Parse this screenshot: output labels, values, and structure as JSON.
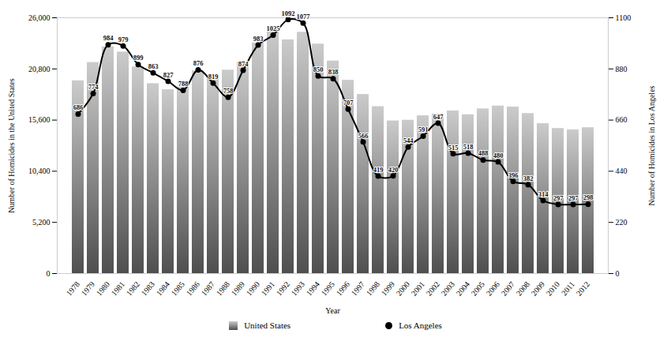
{
  "chart_data": {
    "type": "bar",
    "x_label": "Year",
    "y_label": "Number of Homicides in the United States",
    "y2_label": "Number of Homicides in Los Angeles",
    "categories": [
      "1978",
      "1979",
      "1980",
      "1981",
      "1982",
      "1983",
      "1984",
      "1985",
      "1986",
      "1987",
      "1988",
      "1989",
      "1990",
      "1991",
      "1992",
      "1993",
      "1994",
      "1995",
      "1996",
      "1997",
      "1998",
      "1999",
      "2000",
      "2001",
      "2002",
      "2003",
      "2004",
      "2005",
      "2006",
      "2007",
      "2008",
      "2009",
      "2010",
      "2011",
      "2012"
    ],
    "series": [
      {
        "name": "United States",
        "type": "bar",
        "color": "#8c8c8c",
        "values": [
          19600,
          21460,
          23040,
          22520,
          21010,
          19310,
          18690,
          18980,
          20610,
          20100,
          20680,
          21500,
          23440,
          24700,
          23760,
          24530,
          23330,
          21610,
          19650,
          18210,
          16970,
          15520,
          15590,
          16040,
          16230,
          16530,
          16150,
          16740,
          17030,
          16930,
          16270,
          15240,
          14750,
          14610,
          14830
        ]
      },
      {
        "name": "Los Angeles",
        "type": "line",
        "axis": "y2",
        "color": "#000000",
        "marker": "circle",
        "line_style": "solid",
        "data_labels": true,
        "values": [
          686,
          774,
          984,
          979,
          899,
          863,
          827,
          788,
          876,
          819,
          758,
          874,
          983,
          1025,
          1092,
          1077,
          850,
          838,
          707,
          566,
          419,
          420,
          544,
          591,
          647,
          515,
          518,
          488,
          480,
          396,
          382,
          314,
          297,
          297,
          298
        ]
      }
    ],
    "ylim": [
      0,
      26000
    ],
    "yticks": [
      0,
      {
        "value": 5200,
        "label": "5,200"
      },
      {
        "value": 10400,
        "label": "10,400"
      },
      {
        "value": 15600,
        "label": "15,600"
      },
      {
        "value": 20800,
        "label": "20,800"
      },
      {
        "value": 26000,
        "label": "26,000"
      }
    ],
    "y2lim": [
      0,
      1100
    ],
    "y2ticks": [
      0,
      220,
      440,
      660,
      880,
      1100
    ],
    "grid": false,
    "legend": "bottom"
  }
}
